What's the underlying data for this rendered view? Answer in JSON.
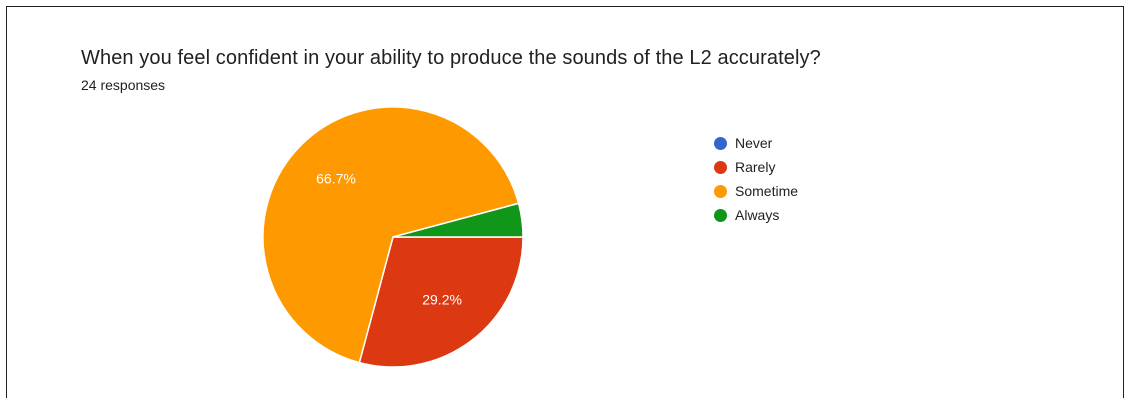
{
  "question": {
    "title": "When you feel confident in your ability to produce the sounds of the L2 accurately?",
    "responses_label": "24 responses"
  },
  "chart_data": {
    "type": "pie",
    "total_responses": 24,
    "start_angle_deg": 90,
    "direction": "clockwise",
    "legend_position": "right",
    "slices": [
      {
        "label": "Never",
        "value": 0,
        "percent_label": "",
        "color": "#3366cc"
      },
      {
        "label": "Rarely",
        "value": 7,
        "percent_label": "29.2%",
        "color": "#dc3912"
      },
      {
        "label": "Sometime",
        "value": 16,
        "percent_label": "66.7%",
        "color": "#ff9900"
      },
      {
        "label": "Always",
        "value": 1,
        "percent_label": "",
        "color": "#109618"
      }
    ]
  }
}
